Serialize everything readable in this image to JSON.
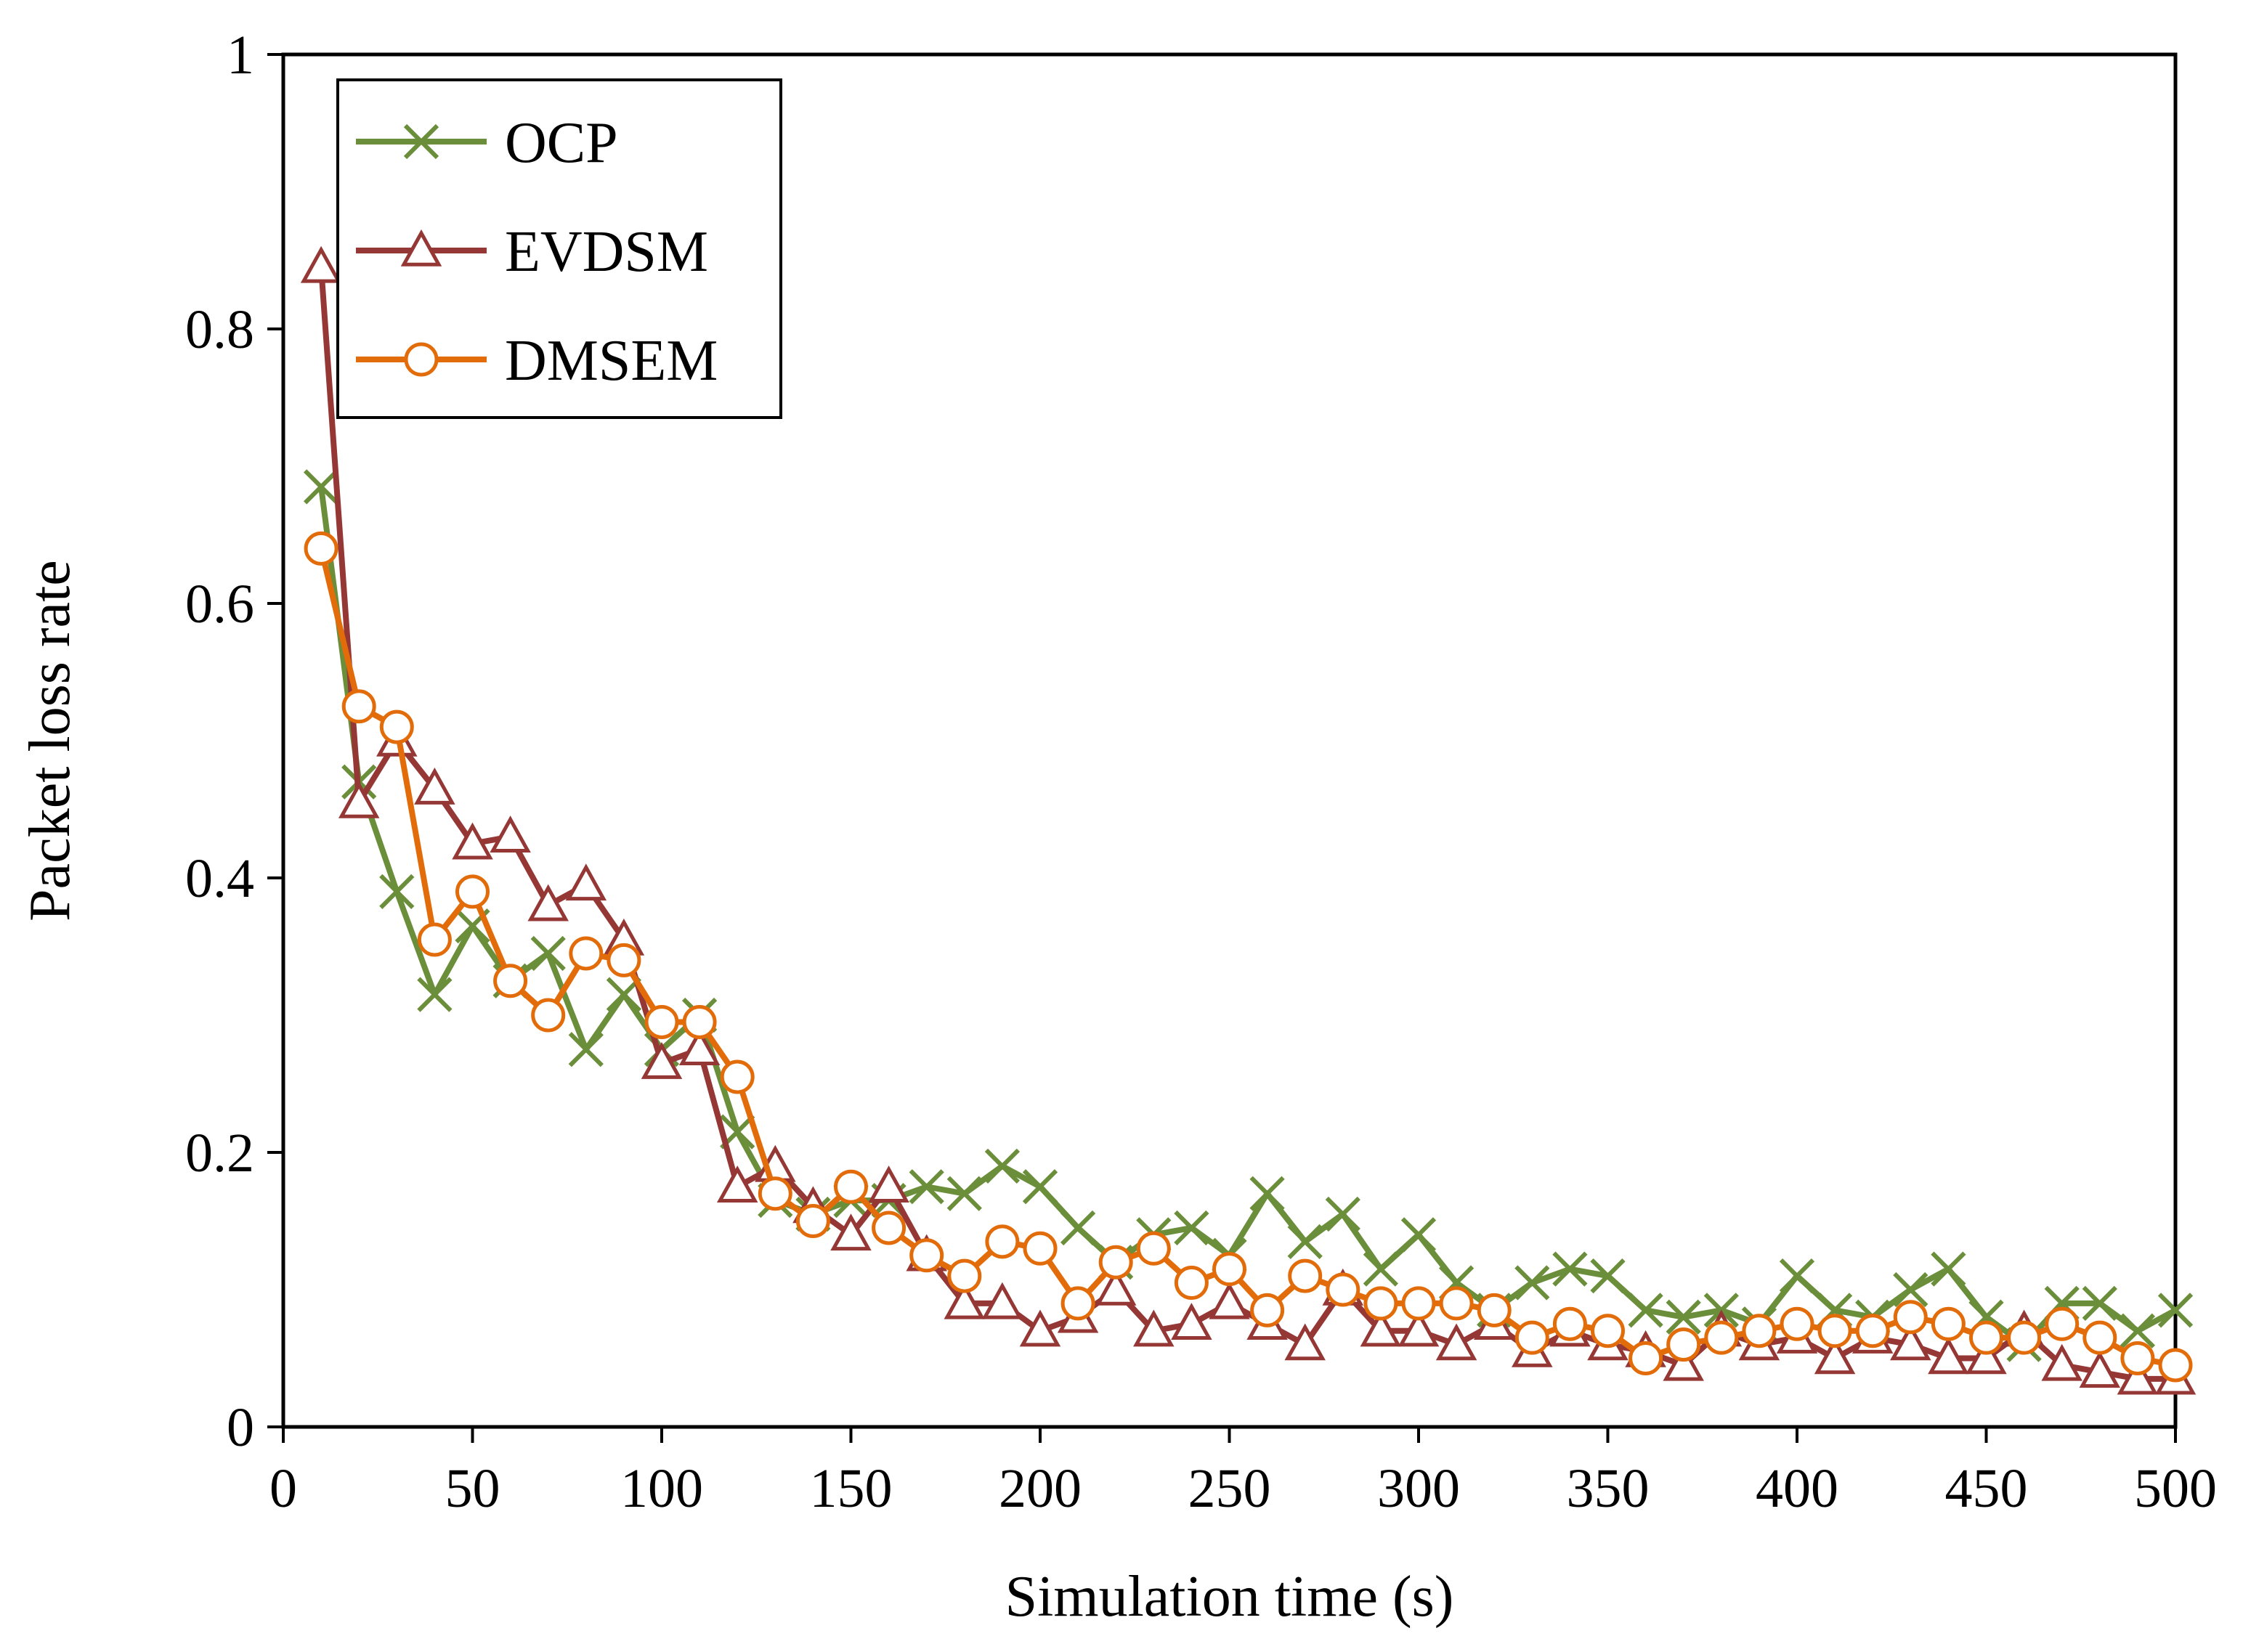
{
  "chart_data": {
    "type": "line",
    "title": "",
    "xlabel": "Simulation time (s)",
    "ylabel": "Packet loss rate",
    "xlim": [
      0,
      500
    ],
    "ylim": [
      0,
      1
    ],
    "x_ticks": [
      "0",
      "50",
      "100",
      "150",
      "200",
      "250",
      "300",
      "350",
      "400",
      "450",
      "500"
    ],
    "y_ticks": [
      "0",
      "0.2",
      "0.4",
      "0.6",
      "0.8",
      "1"
    ],
    "grid": false,
    "legend_position": "top-left",
    "x": [
      10,
      20,
      30,
      40,
      50,
      60,
      70,
      80,
      90,
      100,
      110,
      120,
      130,
      140,
      150,
      160,
      170,
      180,
      190,
      200,
      210,
      220,
      230,
      240,
      250,
      260,
      270,
      280,
      290,
      300,
      310,
      320,
      330,
      340,
      350,
      360,
      370,
      380,
      390,
      400,
      410,
      420,
      430,
      440,
      450,
      460,
      470,
      480,
      490,
      500
    ],
    "series": [
      {
        "name": "OCP",
        "color": "#6b8e3a",
        "marker": "x",
        "values": [
          0.685,
          0.47,
          0.39,
          0.315,
          0.365,
          0.325,
          0.345,
          0.275,
          0.315,
          0.275,
          0.3,
          0.215,
          0.165,
          0.155,
          0.165,
          0.165,
          0.175,
          0.17,
          0.19,
          0.175,
          0.145,
          0.12,
          0.14,
          0.145,
          0.125,
          0.17,
          0.135,
          0.155,
          0.115,
          0.14,
          0.105,
          0.085,
          0.105,
          0.115,
          0.11,
          0.085,
          0.08,
          0.085,
          0.075,
          0.11,
          0.085,
          0.08,
          0.1,
          0.115,
          0.08,
          0.06,
          0.09,
          0.09,
          0.07,
          0.085
        ]
      },
      {
        "name": "EVDSM",
        "color": "#953735",
        "marker": "triangle",
        "values": [
          0.845,
          0.455,
          0.5,
          0.465,
          0.425,
          0.43,
          0.38,
          0.395,
          0.355,
          0.265,
          0.275,
          0.175,
          0.19,
          0.16,
          0.14,
          0.175,
          0.125,
          0.09,
          0.09,
          0.07,
          0.08,
          0.1,
          0.07,
          0.075,
          0.09,
          0.075,
          0.06,
          0.1,
          0.07,
          0.07,
          0.06,
          0.075,
          0.055,
          0.07,
          0.06,
          0.055,
          0.045,
          0.07,
          0.06,
          0.065,
          0.05,
          0.065,
          0.06,
          0.05,
          0.05,
          0.07,
          0.045,
          0.04,
          0.035,
          0.035
        ]
      },
      {
        "name": "DMSEM",
        "color": "#e36c0a",
        "marker": "circle",
        "values": [
          0.64,
          0.525,
          0.51,
          0.355,
          0.39,
          0.325,
          0.3,
          0.345,
          0.34,
          0.295,
          0.295,
          0.255,
          0.17,
          0.15,
          0.175,
          0.145,
          0.125,
          0.11,
          0.135,
          0.13,
          0.09,
          0.12,
          0.13,
          0.105,
          0.115,
          0.085,
          0.11,
          0.1,
          0.09,
          0.09,
          0.09,
          0.085,
          0.065,
          0.075,
          0.07,
          0.05,
          0.06,
          0.065,
          0.07,
          0.075,
          0.07,
          0.07,
          0.08,
          0.075,
          0.065,
          0.065,
          0.075,
          0.065,
          0.05,
          0.045
        ]
      }
    ]
  }
}
